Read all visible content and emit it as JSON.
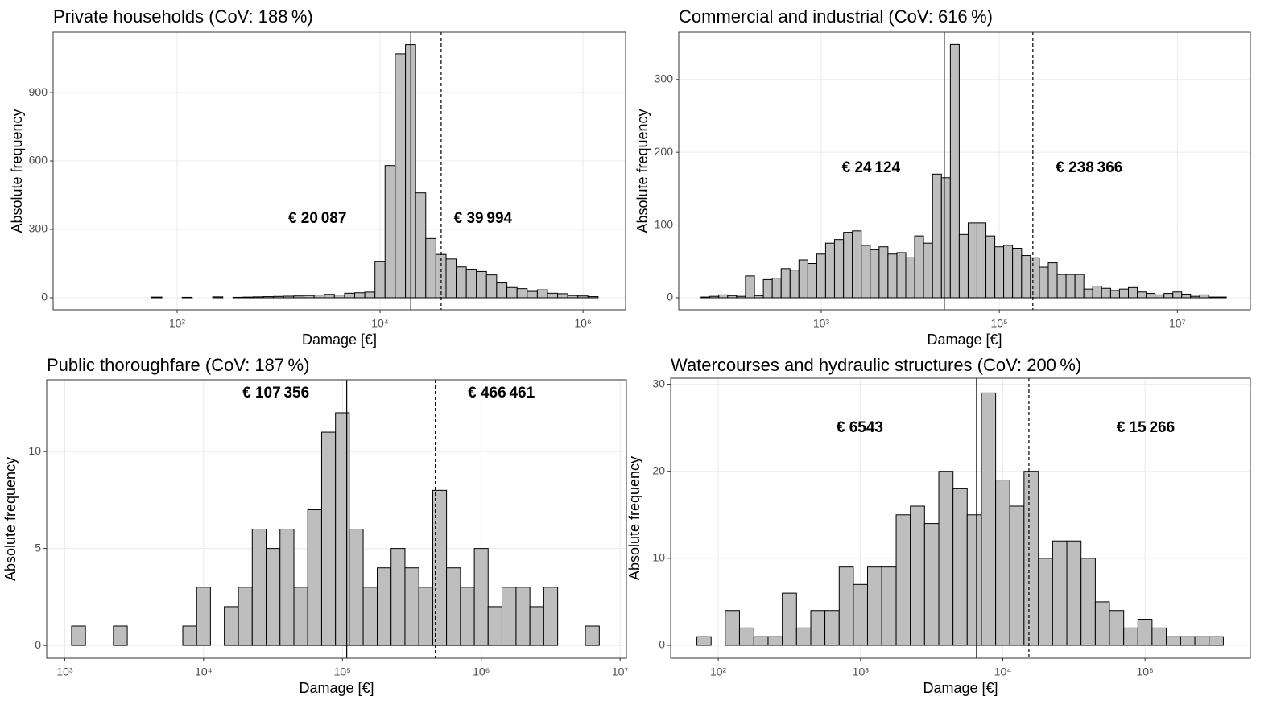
{
  "chart_data": [
    {
      "type": "histogram",
      "title": "Private households (CoV: 188 %)",
      "x_label": "Damage [€]",
      "y_label": "Absolute frequency",
      "x_scale": "log",
      "xlim": [
        6,
        2630000
      ],
      "ylim": [
        -53,
        1165
      ],
      "grid": true,
      "color": "#bebebe",
      "xticks": [
        {
          "value": 100,
          "label": "10²"
        },
        {
          "value": 10000,
          "label": "10⁴"
        },
        {
          "value": 1000000,
          "label": "10⁶"
        }
      ],
      "yticks": [
        0,
        300,
        600,
        900
      ],
      "bins": [
        11.2,
        14.1,
        17.8,
        22.4,
        28.2,
        35.5,
        44.7,
        56.2,
        70.8,
        89.1,
        112,
        141,
        178,
        224,
        282,
        355,
        447,
        562,
        708,
        891,
        1120,
        1410,
        1780,
        2240,
        2820,
        3550,
        4470,
        5620,
        7080,
        8910,
        11200,
        14100,
        17800,
        22400,
        28200,
        35500,
        44700,
        56200,
        70800,
        89100,
        112000,
        141000,
        178000,
        224000,
        282000,
        355000,
        447000,
        562000,
        708000,
        891000,
        1120000,
        1410000
      ],
      "values": [
        0,
        0,
        0,
        0,
        0,
        0,
        0,
        3,
        0,
        0,
        2,
        0,
        0,
        4,
        0,
        2,
        3,
        4,
        5,
        6,
        7,
        8,
        10,
        12,
        15,
        12,
        20,
        22,
        25,
        160,
        580,
        1070,
        1110,
        460,
        260,
        190,
        170,
        135,
        125,
        115,
        100,
        65,
        45,
        40,
        28,
        35,
        20,
        18,
        10,
        8,
        5
      ],
      "lines": [
        {
          "value": 20087,
          "label": "€ 20 087",
          "style": "solid"
        },
        {
          "value": 39994,
          "label": "€ 39 994",
          "style": "dashed"
        }
      ]
    },
    {
      "type": "histogram",
      "title": "Commercial and industrial (CoV: 616 %)",
      "x_label": "Damage [€]",
      "y_label": "Absolute frequency",
      "x_scale": "log",
      "xlim": [
        25.1,
        66100000
      ],
      "ylim": [
        -16.6,
        365
      ],
      "grid": true,
      "color": "#bebebe",
      "xticks": [
        {
          "value": 1000,
          "label": "10³"
        },
        {
          "value": 100000,
          "label": "10⁵"
        },
        {
          "value": 10000000,
          "label": "10⁷"
        }
      ],
      "yticks": [
        0,
        100,
        200,
        300
      ],
      "bins": [
        44.7,
        56.2,
        70.8,
        89.1,
        112,
        141,
        178,
        224,
        282,
        355,
        447,
        562,
        708,
        891,
        1120,
        1410,
        1780,
        2240,
        2820,
        3550,
        4470,
        5620,
        7080,
        8910,
        11200,
        14100,
        17800,
        22400,
        28200,
        35500,
        44700,
        56200,
        70800,
        89100,
        112000,
        141000,
        178000,
        224000,
        282000,
        355000,
        447000,
        562000,
        708000,
        891000,
        1120000,
        1410000,
        1780000,
        2240000,
        2820000,
        3550000,
        4470000,
        5620000,
        7080000,
        8910000,
        11200000,
        14100000,
        17800000,
        22400000,
        28200000,
        35500000
      ],
      "values": [
        1,
        2,
        4,
        3,
        2,
        30,
        3,
        25,
        27,
        40,
        38,
        52,
        47,
        60,
        75,
        80,
        90,
        92,
        72,
        66,
        70,
        60,
        62,
        55,
        85,
        75,
        170,
        165,
        348,
        87,
        103,
        103,
        85,
        70,
        72,
        68,
        58,
        55,
        42,
        48,
        32,
        32,
        32,
        12,
        16,
        13,
        10,
        12,
        14,
        8,
        6,
        4,
        6,
        8,
        5,
        2,
        4,
        1,
        1
      ],
      "lines": [
        {
          "value": 24124,
          "label": "€ 24 124",
          "style": "solid"
        },
        {
          "value": 238366,
          "label": "€ 238 366",
          "style": "dashed"
        }
      ]
    },
    {
      "type": "histogram",
      "title": "Public thoroughfare (CoV: 187 %)",
      "x_label": "Damage [€]",
      "y_label": "Absolute frequency",
      "x_scale": "log",
      "xlim": [
        741,
        11100000
      ],
      "ylim": [
        -0.66,
        13.7
      ],
      "grid": true,
      "color": "#bebebe",
      "xticks": [
        {
          "value": 1000,
          "label": "10³"
        },
        {
          "value": 10000,
          "label": "10⁴"
        },
        {
          "value": 100000,
          "label": "10⁵"
        },
        {
          "value": 1000000,
          "label": "10⁶"
        },
        {
          "value": 10000000,
          "label": "10⁷"
        }
      ],
      "yticks": [
        0,
        5,
        10
      ],
      "bins": [
        1120,
        1410,
        1780,
        2240,
        2820,
        3550,
        4470,
        5620,
        7080,
        8910,
        11200,
        14100,
        17800,
        22400,
        28200,
        35500,
        44700,
        56200,
        70800,
        89100,
        112000,
        141000,
        178000,
        224000,
        282000,
        355000,
        447000,
        562000,
        708000,
        891000,
        1120000,
        1410000,
        1780000,
        2240000,
        2820000,
        3550000,
        4470000,
        5620000,
        7080000
      ],
      "values": [
        1,
        0,
        0,
        1,
        0,
        0,
        0,
        0,
        1,
        3,
        0,
        2,
        3,
        6,
        5,
        6,
        3,
        7,
        11,
        12,
        6,
        3,
        4,
        5,
        4,
        3,
        8,
        4,
        3,
        5,
        2,
        3,
        3,
        2,
        3,
        0,
        0,
        1
      ],
      "lines": [
        {
          "value": 107356,
          "label": "€ 107 356",
          "style": "solid"
        },
        {
          "value": 466461,
          "label": "€ 466 461",
          "style": "dashed"
        }
      ]
    },
    {
      "type": "histogram",
      "title": "Watercourses and hydraulic structures (CoV: 200 %)",
      "x_label": "Damage [€]",
      "y_label": "Absolute frequency",
      "x_scale": "log",
      "xlim": [
        46.3,
        550000
      ],
      "ylim": [
        -1.48,
        30.7
      ],
      "grid": true,
      "color": "#bebebe",
      "xticks": [
        {
          "value": 100,
          "label": "10²"
        },
        {
          "value": 1000,
          "label": "10³"
        },
        {
          "value": 10000,
          "label": "10⁴"
        },
        {
          "value": 100000,
          "label": "10⁵"
        }
      ],
      "yticks": [
        0,
        10,
        20,
        30
      ],
      "bins": [
        70.8,
        89.1,
        112,
        141,
        178,
        224,
        282,
        355,
        447,
        562,
        708,
        891,
        1120,
        1410,
        1780,
        2240,
        2820,
        3550,
        4470,
        5620,
        7080,
        8910,
        11200,
        14100,
        17800,
        22400,
        28200,
        35500,
        44700,
        56200,
        70800,
        89100,
        112000,
        141000,
        178000,
        224000,
        282000,
        355000
      ],
      "values": [
        1,
        0,
        4,
        2,
        1,
        1,
        6,
        2,
        4,
        4,
        9,
        7,
        9,
        9,
        15,
        16,
        14,
        20,
        18,
        15,
        29,
        19,
        16,
        20,
        10,
        12,
        12,
        10,
        5,
        4,
        2,
        3,
        2,
        1,
        1,
        1,
        1
      ],
      "lines": [
        {
          "value": 6543,
          "label": "€ 6543",
          "style": "solid"
        },
        {
          "value": 15266,
          "label": "€ 15 266",
          "style": "dashed"
        }
      ]
    }
  ]
}
